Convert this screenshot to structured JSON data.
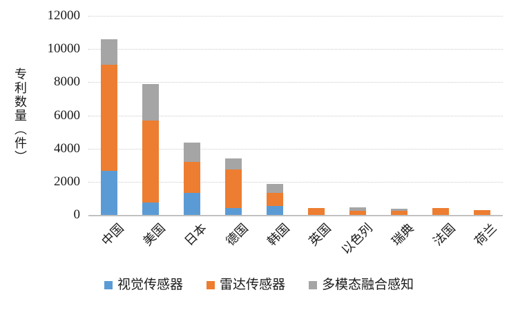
{
  "chart_data": {
    "type": "bar",
    "stacked": true,
    "title": "",
    "xlabel": "",
    "ylabel": "专利数量（件）",
    "ylim": [
      0,
      12000
    ],
    "yticks": [
      0,
      2000,
      4000,
      6000,
      8000,
      10000,
      12000
    ],
    "grid": "horizontal",
    "legend_position": "bottom",
    "categories": [
      "中国",
      "美国",
      "日本",
      "德国",
      "韩国",
      "英国",
      "以色列",
      "瑞典",
      "法国",
      "荷兰"
    ],
    "series": [
      {
        "name": "视觉传感器",
        "color": "#5B9BD5",
        "values": [
          2650,
          750,
          1350,
          420,
          550,
          0,
          0,
          0,
          0,
          0
        ]
      },
      {
        "name": "雷达传感器",
        "color": "#ED7D31",
        "values": [
          6400,
          4950,
          1850,
          2340,
          800,
          430,
          250,
          230,
          400,
          280
        ]
      },
      {
        "name": "多模态融合感知",
        "color": "#A5A5A5",
        "values": [
          1550,
          2200,
          1150,
          640,
          500,
          0,
          200,
          140,
          0,
          0
        ]
      }
    ],
    "totals": [
      10600,
      7900,
      4350,
      3400,
      1850,
      430,
      450,
      370,
      400,
      280
    ]
  },
  "colors": {
    "gridline": "#c9c9c9",
    "axis_line": "#c0c0c0",
    "text": "#1a1a1a",
    "background": "#ffffff"
  }
}
